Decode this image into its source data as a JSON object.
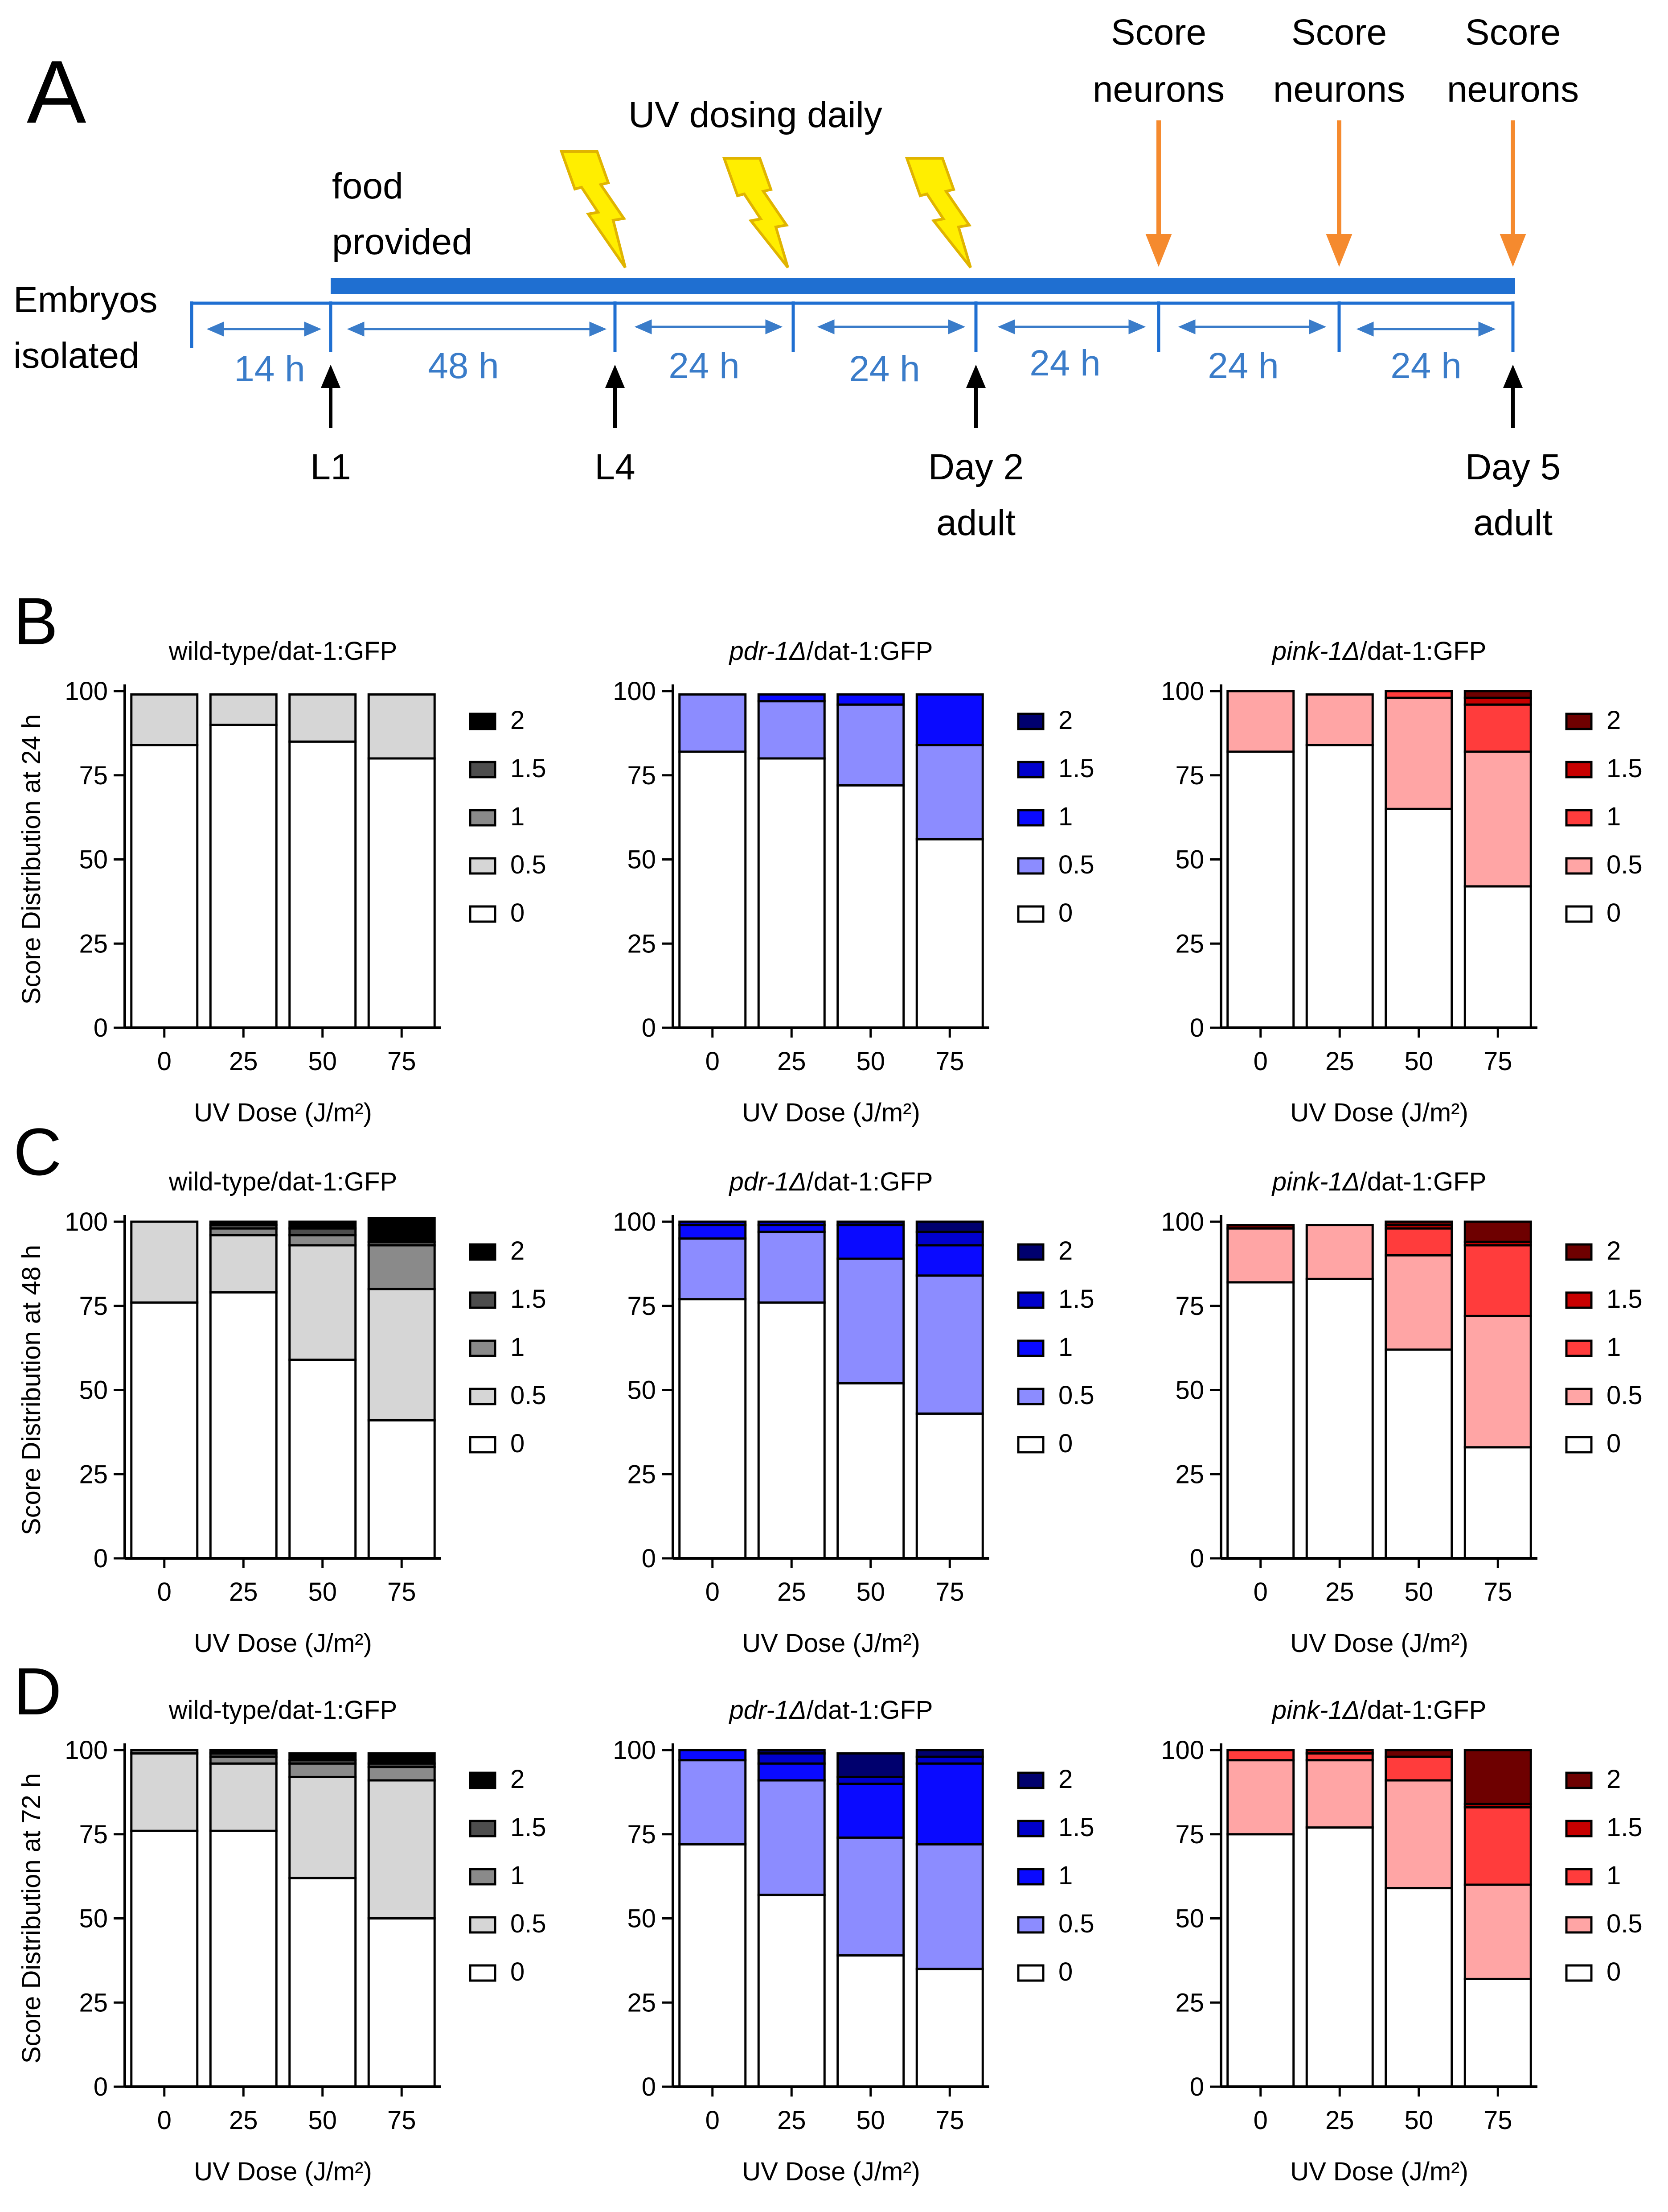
{
  "panel_labels": {
    "a": "A",
    "b": "B",
    "c": "C",
    "d": "D"
  },
  "timeline": {
    "embryos_line1": "Embryos",
    "embryos_line2": "isolated",
    "food_line1": "food",
    "food_line2": "provided",
    "uv_label": "UV dosing daily",
    "score_line1": "Score",
    "score_line2": "neurons",
    "intervals": [
      "14 h",
      "48 h",
      "24 h",
      "24 h",
      "24 h",
      "24 h",
      "24 h"
    ],
    "stage_l1": "L1",
    "stage_l4": "L4",
    "day2_line1": "Day 2",
    "day2_line2": "adult",
    "day5_line1": "Day 5",
    "day5_line2": "adult"
  },
  "colors": {
    "timeline_blue": "#1f6fd1",
    "interval_text": "#3a7cc9",
    "orange": "#f58a2e",
    "lightning_fill": "#ffee00",
    "lightning_stroke": "#e0b400",
    "grey": [
      "#ffffff",
      "#d6d6d6",
      "#8a8a8a",
      "#4d4d4d",
      "#000000"
    ],
    "blue": [
      "#ffffff",
      "#8c8cff",
      "#0a0aff",
      "#0000cc",
      "#00006e"
    ],
    "red": [
      "#ffffff",
      "#ffa5a5",
      "#ff3c3c",
      "#c80000",
      "#6e0000"
    ]
  },
  "chart_data": [
    {
      "id": "B1",
      "type": "stacked-bar",
      "title": "wild-type/dat-1:GFP",
      "palette": "grey",
      "ylabel": "Score Distribution at 24 h",
      "xlabel": "UV Dose (J/m²)",
      "categories": [
        "0",
        "25",
        "50",
        "75"
      ],
      "ylim": [
        0,
        100
      ],
      "yticks": [
        "0",
        "25",
        "50",
        "75",
        "100"
      ],
      "legend": [
        "2",
        "1.5",
        "1",
        "0.5",
        "0"
      ],
      "series": [
        {
          "name": "0",
          "values": [
            84,
            90,
            85,
            80
          ]
        },
        {
          "name": "0.5",
          "values": [
            15,
            9,
            14,
            19
          ]
        },
        {
          "name": "1",
          "values": [
            0,
            0,
            0,
            0
          ]
        },
        {
          "name": "1.5",
          "values": [
            0,
            0,
            0,
            0
          ]
        },
        {
          "name": "2",
          "values": [
            0,
            0,
            0,
            0
          ]
        }
      ]
    },
    {
      "id": "B2",
      "type": "stacked-bar",
      "title": "pdr-1Δ/dat-1:GFP",
      "title_italic": "pdr-1Δ",
      "title_rest": "/dat-1:GFP",
      "palette": "blue",
      "ylabel": "",
      "xlabel": "UV Dose (J/m²)",
      "categories": [
        "0",
        "25",
        "50",
        "75"
      ],
      "ylim": [
        0,
        100
      ],
      "yticks": [
        "0",
        "25",
        "50",
        "75",
        "100"
      ],
      "legend": [
        "2",
        "1.5",
        "1",
        "0.5",
        "0"
      ],
      "series": [
        {
          "name": "0",
          "values": [
            82,
            80,
            72,
            56
          ]
        },
        {
          "name": "0.5",
          "values": [
            17,
            17,
            24,
            28
          ]
        },
        {
          "name": "1",
          "values": [
            0,
            2,
            3,
            15
          ]
        },
        {
          "name": "1.5",
          "values": [
            0,
            0,
            0,
            0
          ]
        },
        {
          "name": "2",
          "values": [
            0,
            0,
            0,
            0
          ]
        }
      ]
    },
    {
      "id": "B3",
      "type": "stacked-bar",
      "title": "pink-1Δ/dat-1:GFP",
      "title_italic": "pink-1Δ",
      "title_rest": "/dat-1:GFP",
      "palette": "red",
      "ylabel": "",
      "xlabel": "UV Dose (J/m²)",
      "categories": [
        "0",
        "25",
        "50",
        "75"
      ],
      "ylim": [
        0,
        100
      ],
      "yticks": [
        "0",
        "25",
        "50",
        "75",
        "100"
      ],
      "legend": [
        "2",
        "1.5",
        "1",
        "0.5",
        "0"
      ],
      "series": [
        {
          "name": "0",
          "values": [
            82,
            84,
            65,
            42
          ]
        },
        {
          "name": "0.5",
          "values": [
            18,
            15,
            33,
            40
          ]
        },
        {
          "name": "1",
          "values": [
            0,
            0,
            2,
            14
          ]
        },
        {
          "name": "1.5",
          "values": [
            0,
            0,
            0,
            2
          ]
        },
        {
          "name": "2",
          "values": [
            0,
            0,
            0,
            2
          ]
        }
      ]
    },
    {
      "id": "C1",
      "type": "stacked-bar",
      "title": "wild-type/dat-1:GFP",
      "palette": "grey",
      "ylabel": "Score Distribution at 48 h",
      "xlabel": "UV Dose (J/m²)",
      "categories": [
        "0",
        "25",
        "50",
        "75"
      ],
      "ylim": [
        0,
        100
      ],
      "yticks": [
        "0",
        "25",
        "50",
        "75",
        "100"
      ],
      "legend": [
        "2",
        "1.5",
        "1",
        "0.5",
        "0"
      ],
      "series": [
        {
          "name": "0",
          "values": [
            76,
            79,
            59,
            41
          ]
        },
        {
          "name": "0.5",
          "values": [
            24,
            17,
            34,
            39
          ]
        },
        {
          "name": "1",
          "values": [
            0,
            2,
            3,
            13
          ]
        },
        {
          "name": "1.5",
          "values": [
            0,
            1,
            2,
            1
          ]
        },
        {
          "name": "2",
          "values": [
            0,
            1,
            2,
            7
          ]
        }
      ]
    },
    {
      "id": "C2",
      "type": "stacked-bar",
      "title": "pdr-1Δ/dat-1:GFP",
      "title_italic": "pdr-1Δ",
      "title_rest": "/dat-1:GFP",
      "palette": "blue",
      "ylabel": "",
      "xlabel": "UV Dose (J/m²)",
      "categories": [
        "0",
        "25",
        "50",
        "75"
      ],
      "ylim": [
        0,
        100
      ],
      "yticks": [
        "0",
        "25",
        "50",
        "75",
        "100"
      ],
      "legend": [
        "2",
        "1.5",
        "1",
        "0.5",
        "0"
      ],
      "series": [
        {
          "name": "0",
          "values": [
            77,
            76,
            52,
            43
          ]
        },
        {
          "name": "0.5",
          "values": [
            18,
            21,
            37,
            41
          ]
        },
        {
          "name": "1",
          "values": [
            4,
            2,
            10,
            9
          ]
        },
        {
          "name": "1.5",
          "values": [
            1,
            1,
            0,
            4
          ]
        },
        {
          "name": "2",
          "values": [
            0,
            0,
            1,
            3
          ]
        }
      ]
    },
    {
      "id": "C3",
      "type": "stacked-bar",
      "title": "pink-1Δ/dat-1:GFP",
      "title_italic": "pink-1Δ",
      "title_rest": "/dat-1:GFP",
      "palette": "red",
      "ylabel": "",
      "xlabel": "UV Dose (J/m²)",
      "categories": [
        "0",
        "25",
        "50",
        "75"
      ],
      "ylim": [
        0,
        100
      ],
      "yticks": [
        "0",
        "25",
        "50",
        "75",
        "100"
      ],
      "legend": [
        "2",
        "1.5",
        "1",
        "0.5",
        "0"
      ],
      "series": [
        {
          "name": "0",
          "values": [
            82,
            83,
            62,
            33
          ]
        },
        {
          "name": "0.5",
          "values": [
            16,
            16,
            28,
            39
          ]
        },
        {
          "name": "1",
          "values": [
            0,
            0,
            8,
            21
          ]
        },
        {
          "name": "1.5",
          "values": [
            0,
            0,
            1,
            1
          ]
        },
        {
          "name": "2",
          "values": [
            1,
            0,
            1,
            6
          ]
        }
      ]
    },
    {
      "id": "D1",
      "type": "stacked-bar",
      "title": "wild-type/dat-1:GFP",
      "palette": "grey",
      "ylabel": "Score Distribution at 72 h",
      "xlabel": "UV Dose (J/m²)",
      "categories": [
        "0",
        "25",
        "50",
        "75"
      ],
      "ylim": [
        0,
        100
      ],
      "yticks": [
        "0",
        "25",
        "50",
        "75",
        "100"
      ],
      "legend": [
        "2",
        "1.5",
        "1",
        "0.5",
        "0"
      ],
      "series": [
        {
          "name": "0",
          "values": [
            76,
            76,
            62,
            50
          ]
        },
        {
          "name": "0.5",
          "values": [
            23,
            20,
            30,
            41
          ]
        },
        {
          "name": "1",
          "values": [
            1,
            2,
            4,
            4
          ]
        },
        {
          "name": "1.5",
          "values": [
            0,
            1,
            1,
            1
          ]
        },
        {
          "name": "2",
          "values": [
            0,
            1,
            2,
            3
          ]
        }
      ]
    },
    {
      "id": "D2",
      "type": "stacked-bar",
      "title": "pdr-1Δ/dat-1:GFP",
      "title_italic": "pdr-1Δ",
      "title_rest": "/dat-1:GFP",
      "palette": "blue",
      "ylabel": "",
      "xlabel": "UV Dose (J/m²)",
      "categories": [
        "0",
        "25",
        "50",
        "75"
      ],
      "ylim": [
        0,
        100
      ],
      "yticks": [
        "0",
        "25",
        "50",
        "75",
        "100"
      ],
      "legend": [
        "2",
        "1.5",
        "1",
        "0.5",
        "0"
      ],
      "series": [
        {
          "name": "0",
          "values": [
            72,
            57,
            39,
            35
          ]
        },
        {
          "name": "0.5",
          "values": [
            25,
            34,
            35,
            37
          ]
        },
        {
          "name": "1",
          "values": [
            3,
            5,
            16,
            24
          ]
        },
        {
          "name": "1.5",
          "values": [
            0,
            3,
            2,
            2
          ]
        },
        {
          "name": "2",
          "values": [
            0,
            1,
            7,
            2
          ]
        }
      ]
    },
    {
      "id": "D3",
      "type": "stacked-bar",
      "title": "pink-1Δ/dat-1:GFP",
      "title_italic": "pink-1Δ",
      "title_rest": "/dat-1:GFP",
      "palette": "red",
      "ylabel": "",
      "xlabel": "UV Dose (J/m²)",
      "categories": [
        "0",
        "25",
        "50",
        "75"
      ],
      "ylim": [
        0,
        100
      ],
      "yticks": [
        "0",
        "25",
        "50",
        "75",
        "100"
      ],
      "legend": [
        "2",
        "1.5",
        "1",
        "0.5",
        "0"
      ],
      "series": [
        {
          "name": "0",
          "values": [
            75,
            77,
            59,
            32
          ]
        },
        {
          "name": "0.5",
          "values": [
            22,
            20,
            32,
            28
          ]
        },
        {
          "name": "1",
          "values": [
            3,
            2,
            7,
            23
          ]
        },
        {
          "name": "1.5",
          "values": [
            0,
            1,
            0,
            1
          ]
        },
        {
          "name": "2",
          "values": [
            0,
            0,
            2,
            16
          ]
        }
      ]
    }
  ]
}
